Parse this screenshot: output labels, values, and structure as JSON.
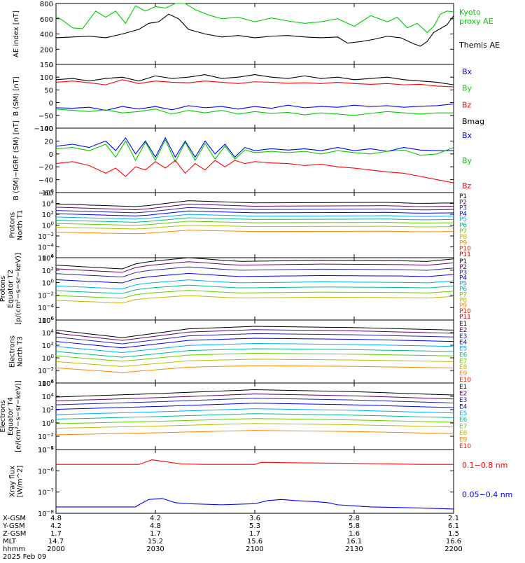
{
  "x_axis": {
    "minutes": [
      0,
      30,
      60,
      90,
      120
    ],
    "rows": [
      {
        "label": "X-GSM",
        "values": [
          "4.8",
          "4.2",
          "3.6",
          "2.8",
          "2.1"
        ]
      },
      {
        "label": "Y-GSM",
        "values": [
          "4.2",
          "4.8",
          "5.3",
          "5.8",
          "6.1"
        ]
      },
      {
        "label": "Z-GSM",
        "values": [
          "1.7",
          "1.7",
          "1.7",
          "1.6",
          "1.5"
        ]
      },
      {
        "label": "MLT",
        "values": [
          "14.7",
          "15.2",
          "15.6",
          "16.1",
          "16.6"
        ]
      },
      {
        "label": "hhmm",
        "values": [
          "2000",
          "2030",
          "2100",
          "2130",
          "2200"
        ]
      }
    ],
    "date": "2025 Feb 09"
  },
  "colors": {
    "black": "#000000",
    "blue": "#0000ff",
    "green": "#00cc00",
    "red": "#ff0000",
    "p1": "#000000",
    "p2": "#660066",
    "p3": "#2222aa",
    "p4": "#0000ff",
    "p5": "#00aaff",
    "p6": "#00bb88",
    "p7": "#66cc00",
    "p8": "#bbbb00",
    "p9": "#ff8800",
    "p10": "#dd2200",
    "p11": "#cc0000"
  },
  "chart_data": [
    {
      "type": "line",
      "key": "ae",
      "ylabel": "AE index [nT]",
      "ylim": [
        0,
        800
      ],
      "yticks": [
        "0",
        "200",
        "400",
        "600",
        "800"
      ],
      "legend": [
        {
          "text": "Kyoto",
          "color": "#00cc00"
        },
        {
          "text": "proxy AE",
          "color": "#00cc00"
        },
        {
          "text": "Themis AE",
          "color": "#000000"
        }
      ],
      "series": [
        {
          "name": "Kyoto proxy AE",
          "color": "#00cc00",
          "x": [
            0,
            2,
            5,
            8,
            12,
            15,
            18,
            21,
            24,
            27,
            30,
            33,
            36,
            39,
            42,
            46,
            50,
            55,
            60,
            65,
            70,
            75,
            80,
            85,
            90,
            95,
            100,
            103,
            106,
            109,
            112,
            114,
            116,
            118,
            120
          ],
          "y": [
            630,
            580,
            480,
            470,
            700,
            620,
            700,
            540,
            770,
            700,
            760,
            740,
            860,
            820,
            720,
            650,
            600,
            620,
            560,
            610,
            570,
            540,
            560,
            600,
            500,
            640,
            560,
            620,
            480,
            540,
            420,
            500,
            660,
            700,
            690
          ]
        },
        {
          "name": "Themis AE",
          "color": "#000000",
          "x": [
            0,
            5,
            10,
            15,
            20,
            25,
            28,
            31,
            34,
            37,
            40,
            45,
            50,
            55,
            60,
            65,
            70,
            75,
            80,
            85,
            88,
            92,
            96,
            100,
            104,
            108,
            110,
            112,
            114,
            116,
            118,
            120
          ],
          "y": [
            350,
            360,
            370,
            350,
            400,
            460,
            540,
            560,
            660,
            600,
            460,
            400,
            360,
            380,
            350,
            370,
            380,
            360,
            350,
            360,
            280,
            300,
            330,
            370,
            350,
            270,
            240,
            300,
            420,
            470,
            520,
            640
          ]
        }
      ]
    },
    {
      "type": "line",
      "key": "bsm",
      "ylabel": "B (SM) [nT]",
      "ylim": [
        -100,
        150
      ],
      "yticks": [
        "−100",
        "−50",
        "0",
        "50",
        "100",
        "150"
      ],
      "legend": [
        {
          "text": "Bx",
          "color": "#0000ff"
        },
        {
          "text": "By",
          "color": "#00cc00"
        },
        {
          "text": "Bz",
          "color": "#ff0000"
        },
        {
          "text": "Bmag",
          "color": "#000000"
        }
      ],
      "series": [
        {
          "name": "Bx",
          "color": "#0000ff",
          "x": [
            0,
            5,
            10,
            15,
            20,
            25,
            30,
            35,
            40,
            45,
            50,
            55,
            60,
            65,
            70,
            75,
            80,
            85,
            90,
            95,
            100,
            105,
            110,
            115,
            120
          ],
          "y": [
            -20,
            -22,
            -18,
            -30,
            -15,
            -25,
            -15,
            -28,
            -12,
            -20,
            -15,
            -25,
            -15,
            -22,
            -10,
            -20,
            -15,
            -18,
            -10,
            -15,
            -12,
            -18,
            -14,
            -12,
            -5
          ]
        },
        {
          "name": "By",
          "color": "#00cc00",
          "x": [
            0,
            5,
            10,
            15,
            20,
            25,
            30,
            35,
            40,
            45,
            50,
            55,
            60,
            65,
            70,
            75,
            80,
            85,
            90,
            95,
            100,
            105,
            110,
            115,
            120
          ],
          "y": [
            -25,
            -30,
            -35,
            -28,
            -40,
            -35,
            -25,
            -45,
            -30,
            -40,
            -30,
            -45,
            -35,
            -42,
            -38,
            -48,
            -40,
            -45,
            -50,
            -42,
            -35,
            -40,
            -45,
            -40,
            -40
          ]
        },
        {
          "name": "Bz",
          "color": "#ff0000",
          "x": [
            0,
            5,
            10,
            15,
            20,
            25,
            30,
            35,
            40,
            45,
            50,
            55,
            60,
            65,
            70,
            75,
            80,
            85,
            90,
            95,
            100,
            105,
            110,
            115,
            120
          ],
          "y": [
            80,
            85,
            78,
            70,
            90,
            75,
            85,
            80,
            78,
            85,
            80,
            75,
            82,
            80,
            76,
            78,
            75,
            80,
            75,
            72,
            75,
            70,
            72,
            65,
            62
          ]
        },
        {
          "name": "Bmag",
          "color": "#000000",
          "x": [
            0,
            5,
            10,
            15,
            20,
            25,
            30,
            35,
            40,
            45,
            50,
            55,
            60,
            65,
            70,
            75,
            80,
            85,
            90,
            95,
            100,
            105,
            110,
            115,
            120
          ],
          "y": [
            90,
            95,
            85,
            95,
            100,
            85,
            105,
            95,
            100,
            110,
            95,
            100,
            110,
            100,
            95,
            105,
            95,
            100,
            90,
            95,
            100,
            90,
            85,
            80,
            70
          ]
        }
      ]
    },
    {
      "type": "line",
      "key": "bigrf",
      "ylabel": "B (SM)−IGRF (SM) [nT]",
      "ylim": [
        -60,
        40
      ],
      "yticks": [
        "−60",
        "−40",
        "−20",
        "0",
        "20",
        "40"
      ],
      "legend": [
        {
          "text": "Bx",
          "color": "#0000ff"
        },
        {
          "text": "By",
          "color": "#00cc00"
        },
        {
          "text": "Bz",
          "color": "#ff0000"
        }
      ],
      "series": [
        {
          "name": "Bx",
          "color": "#0000ff",
          "x": [
            0,
            5,
            10,
            15,
            18,
            21,
            24,
            27,
            30,
            33,
            36,
            39,
            42,
            45,
            48,
            51,
            54,
            57,
            60,
            65,
            70,
            75,
            80,
            85,
            90,
            95,
            100,
            105,
            110,
            115,
            120
          ],
          "y": [
            12,
            15,
            10,
            20,
            5,
            25,
            0,
            20,
            -5,
            25,
            -5,
            20,
            -5,
            20,
            0,
            15,
            -5,
            10,
            5,
            8,
            6,
            8,
            5,
            10,
            5,
            8,
            4,
            10,
            6,
            5,
            5
          ]
        },
        {
          "name": "By",
          "color": "#00cc00",
          "x": [
            0,
            5,
            10,
            15,
            18,
            21,
            24,
            27,
            30,
            33,
            36,
            39,
            42,
            45,
            48,
            51,
            54,
            57,
            60,
            65,
            70,
            75,
            80,
            85,
            90,
            95,
            100,
            105,
            110,
            115,
            120
          ],
          "y": [
            8,
            10,
            5,
            15,
            -5,
            20,
            -10,
            18,
            -10,
            22,
            -12,
            18,
            -10,
            16,
            -8,
            12,
            -8,
            6,
            2,
            4,
            2,
            4,
            0,
            5,
            2,
            0,
            4,
            6,
            -2,
            0,
            10
          ]
        },
        {
          "name": "Bz",
          "color": "#ff0000",
          "x": [
            0,
            5,
            10,
            15,
            18,
            21,
            24,
            27,
            30,
            33,
            36,
            39,
            42,
            45,
            48,
            51,
            54,
            57,
            60,
            65,
            70,
            75,
            80,
            85,
            90,
            95,
            100,
            105,
            110,
            115,
            120
          ],
          "y": [
            -15,
            -12,
            -18,
            -30,
            -22,
            -35,
            -20,
            -25,
            -12,
            -22,
            -10,
            -30,
            -15,
            -25,
            -10,
            -20,
            -10,
            -15,
            -12,
            -14,
            -15,
            -18,
            -16,
            -20,
            -22,
            -25,
            -28,
            -30,
            -35,
            -40,
            -45
          ]
        }
      ]
    },
    {
      "type": "line",
      "key": "pn",
      "log": true,
      "ylabel_lines": [
        "Protons",
        "North T1"
      ],
      "ylim_exp": [
        -6,
        6
      ],
      "yticks": [
        {
          "e": -6
        },
        {
          "e": -4
        },
        {
          "e": -2
        },
        {
          "e": 0
        },
        {
          "e": 2
        },
        {
          "e": 4
        },
        {
          "e": 6
        }
      ],
      "legend": [
        "P1",
        "P2",
        "P3",
        "P4",
        "P5",
        "P6",
        "P7",
        "P8",
        "P9",
        "P10",
        "P11"
      ],
      "levels": [
        3.9,
        3.3,
        2.7,
        2.1,
        1.5,
        0.9,
        0.3,
        -0.4,
        -1.3,
        null,
        null
      ],
      "bump": [
        [
          0,
          0
        ],
        [
          25,
          -0.5
        ],
        [
          40,
          0.6
        ],
        [
          60,
          0.2
        ],
        [
          100,
          0.3
        ],
        [
          110,
          0.1
        ],
        [
          120,
          0.2
        ]
      ]
    },
    {
      "type": "line",
      "key": "pe",
      "log": true,
      "ylabel_lines": [
        "Protons",
        "Equator T2",
        "[p/(cm²−s−sr−keV)]"
      ],
      "ylim_exp": [
        -6,
        4
      ],
      "yticks": [
        {
          "e": -6
        },
        {
          "e": -4
        },
        {
          "e": -2
        },
        {
          "e": 0
        },
        {
          "e": 2
        },
        {
          "e": 4
        }
      ],
      "legend": [
        "P1",
        "P2",
        "P3",
        "P4",
        "P5",
        "P6",
        "P7",
        "P8",
        "P9",
        "P10",
        "P11"
      ],
      "levels": [
        3.2,
        2.6,
        1.8,
        0.8,
        -0.2,
        -1.0,
        -1.8,
        -2.6,
        null,
        null,
        null
      ],
      "bump": [
        [
          0,
          -0.4
        ],
        [
          20,
          -1.0
        ],
        [
          25,
          0
        ],
        [
          40,
          0.8
        ],
        [
          55,
          0.2
        ],
        [
          80,
          0.4
        ],
        [
          105,
          0.3
        ],
        [
          112,
          0.2
        ],
        [
          120,
          0.6
        ]
      ]
    },
    {
      "type": "line",
      "key": "en",
      "log": true,
      "ylabel_lines": [
        "Electrons",
        "North T3"
      ],
      "ylim_exp": [
        -4,
        6
      ],
      "yticks": [
        {
          "e": -4
        },
        {
          "e": -2
        },
        {
          "e": 0
        },
        {
          "e": 2
        },
        {
          "e": 4
        },
        {
          "e": 6
        }
      ],
      "legend": [
        "E1",
        "E2",
        "E3",
        "E4",
        "E5",
        "E6",
        "E7",
        "E8",
        "E9",
        "E10"
      ],
      "levels": [
        4.4,
        3.9,
        3.3,
        2.6,
        1.8,
        1.0,
        0.3,
        -0.6,
        -1.6,
        null
      ],
      "bump": [
        [
          0,
          0
        ],
        [
          20,
          -1.2
        ],
        [
          40,
          0.2
        ],
        [
          60,
          0.6
        ],
        [
          90,
          0.4
        ],
        [
          120,
          0
        ]
      ]
    },
    {
      "type": "line",
      "key": "ee",
      "log": true,
      "ylabel_lines": [
        "Electrons",
        "Equator T4",
        "[e/(cm²−s−sr−keV)]"
      ],
      "ylim_exp": [
        -4,
        6
      ],
      "yticks": [
        {
          "e": -4
        },
        {
          "e": -2
        },
        {
          "e": 0
        },
        {
          "e": 2
        },
        {
          "e": 4
        },
        {
          "e": 6
        }
      ],
      "legend": [
        "E1",
        "E2",
        "E3",
        "E4",
        "E5",
        "E6",
        "E7",
        "E8",
        "E9",
        "E10"
      ],
      "levels": [
        4.2,
        3.6,
        3.0,
        2.3,
        1.5,
        0.8,
        0.1,
        -0.6,
        -1.6,
        null
      ],
      "bump": [
        [
          0,
          -0.3
        ],
        [
          30,
          0.2
        ],
        [
          60,
          0.8
        ],
        [
          90,
          0.5
        ],
        [
          120,
          0
        ]
      ]
    },
    {
      "type": "line",
      "key": "xray",
      "log": true,
      "ylabel_lines": [
        "Xray flux",
        "[W/m^2]"
      ],
      "ylim_exp": [
        -8,
        -5
      ],
      "yticks": [
        {
          "e": -8
        },
        {
          "e": -7
        },
        {
          "e": -6
        },
        {
          "e": -5
        }
      ],
      "legend": [
        {
          "text": "0.1−0.8 nm",
          "color": "#ff0000"
        },
        {
          "text": "0.05−0.4 nm",
          "color": "#0000ff"
        }
      ],
      "series": [
        {
          "name": "0.1−0.8 nm",
          "color": "#ff0000",
          "x": [
            0,
            25,
            29,
            32,
            38,
            45,
            60,
            62,
            70,
            90,
            110,
            120
          ],
          "y": [
            -5.7,
            -5.7,
            -5.48,
            -5.55,
            -5.68,
            -5.7,
            -5.7,
            -5.6,
            -5.62,
            -5.65,
            -5.7,
            -5.7
          ]
        },
        {
          "name": "0.05−0.4 nm",
          "color": "#0000ff",
          "x": [
            0,
            24,
            25,
            28,
            32,
            36,
            40,
            50,
            60,
            64,
            68,
            72,
            78,
            82,
            85,
            95,
            110,
            120
          ],
          "y": [
            -7.7,
            -7.7,
            -7.6,
            -7.35,
            -7.3,
            -7.5,
            -7.55,
            -7.6,
            -7.55,
            -7.4,
            -7.35,
            -7.4,
            -7.45,
            -7.5,
            -7.6,
            -7.7,
            -7.75,
            -7.8
          ]
        }
      ]
    }
  ]
}
